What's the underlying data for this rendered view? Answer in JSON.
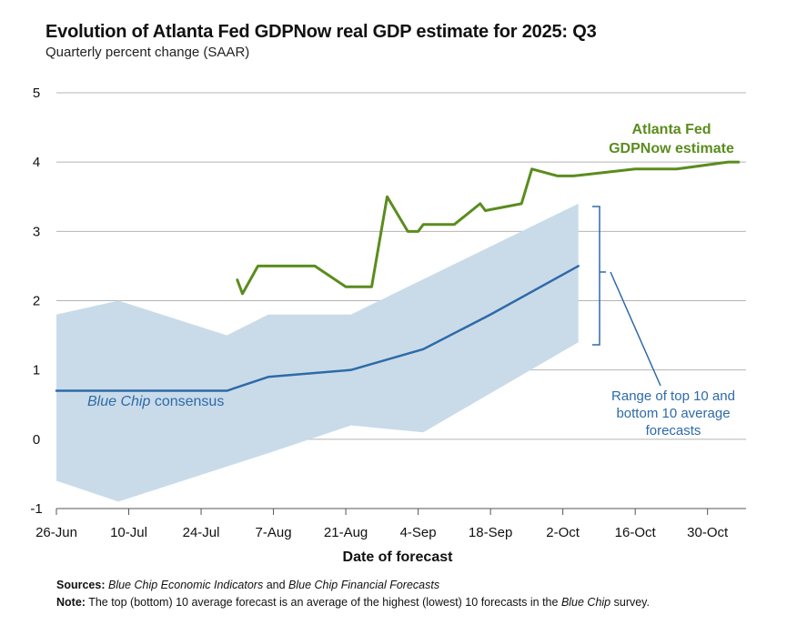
{
  "chart_data": {
    "type": "line",
    "title": "Evolution of Atlanta Fed GDPNow real GDP estimate for 2025: Q3",
    "subtitle": "Quarterly percent change (SAAR)",
    "xlabel": "Date of forecast",
    "ylabel": "",
    "ylim": [
      -1,
      5
    ],
    "yticks": [
      "5",
      "4",
      "3",
      "2",
      "1",
      "0",
      "-1"
    ],
    "ytick_values": [
      5,
      4,
      3,
      2,
      1,
      0,
      -1
    ],
    "x_start": "26-Jun",
    "x_end": "4-Nov",
    "xticks": [
      {
        "label": "26-Jun",
        "day": 0
      },
      {
        "label": "10-Jul",
        "day": 14
      },
      {
        "label": "24-Jul",
        "day": 28
      },
      {
        "label": "7-Aug",
        "day": 42
      },
      {
        "label": "21-Aug",
        "day": 56
      },
      {
        "label": "4-Sep",
        "day": 70
      },
      {
        "label": "18-Sep",
        "day": 84
      },
      {
        "label": "2-Oct",
        "day": 98
      },
      {
        "label": "16-Oct",
        "day": 112
      },
      {
        "label": "30-Oct",
        "day": 126
      }
    ],
    "x_range_days": [
      0,
      133
    ],
    "grid": true,
    "series": [
      {
        "name": "Atlanta Fed GDPNow estimate",
        "color": "#5b8c1e",
        "points": [
          [
            35,
            2.3
          ],
          [
            36,
            2.1
          ],
          [
            39,
            2.5
          ],
          [
            50,
            2.5
          ],
          [
            56,
            2.2
          ],
          [
            61,
            2.2
          ],
          [
            64,
            3.5
          ],
          [
            68,
            3.0
          ],
          [
            70,
            3.0
          ],
          [
            71,
            3.1
          ],
          [
            77,
            3.1
          ],
          [
            82,
            3.4
          ],
          [
            83,
            3.3
          ],
          [
            90,
            3.4
          ],
          [
            92,
            3.9
          ],
          [
            97,
            3.8
          ],
          [
            100,
            3.8
          ],
          [
            112,
            3.9
          ],
          [
            120,
            3.9
          ],
          [
            130,
            4.0
          ],
          [
            132,
            4.0
          ]
        ]
      },
      {
        "name": "Blue Chip consensus",
        "color": "#2e6aa8",
        "points": [
          [
            0,
            0.7
          ],
          [
            33,
            0.7
          ],
          [
            41,
            0.9
          ],
          [
            57,
            1.0
          ],
          [
            71,
            1.3
          ],
          [
            84,
            1.8
          ],
          [
            101,
            2.5
          ]
        ]
      }
    ],
    "range_band": {
      "name": "Range of top 10 and bottom 10 average forecasts",
      "color": "#c9dbe9",
      "upper": [
        [
          0,
          1.8
        ],
        [
          12,
          2.0
        ],
        [
          33,
          1.5
        ],
        [
          41,
          1.8
        ],
        [
          57,
          1.8
        ],
        [
          101,
          3.4
        ]
      ],
      "lower": [
        [
          0,
          -0.6
        ],
        [
          12,
          -0.9
        ],
        [
          41,
          -0.2
        ],
        [
          57,
          0.2
        ],
        [
          71,
          0.1
        ],
        [
          101,
          1.4
        ]
      ]
    },
    "annotations": {
      "gdpnow_line1": "Atlanta Fed",
      "gdpnow_line2": "GDPNow estimate",
      "bluechip_italic": "Blue Chip",
      "bluechip_rest": " consensus",
      "range_line1": "Range of top 10 and",
      "range_line2": "bottom 10 average",
      "range_line3": "forecasts"
    }
  },
  "notes": {
    "sources_label": "Sources:",
    "sources_pub1": "Blue Chip Economic Indicators",
    "sources_and": " and ",
    "sources_pub2": "Blue Chip Financial Forecasts",
    "note_label": "Note:",
    "note_text_a": " The top (bottom) 10 average forecast is an average of the highest (lowest) 10 forecasts in the ",
    "note_italic": "Blue Chip",
    "note_text_b": " survey."
  },
  "colors": {
    "gdpnow": "#5b8c1e",
    "bluechip": "#2e6aa8",
    "band": "#c9dbe9",
    "grid": "#b5b5b5"
  }
}
